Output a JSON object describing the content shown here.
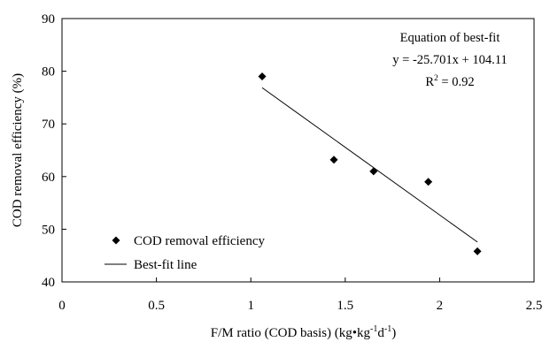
{
  "chart_data": {
    "type": "scatter",
    "xlabel": "F/M ratio (COD basis) (kg•kg",
    "xlabel_sup1": "-1",
    "xlabel_mid": "d",
    "xlabel_sup2": "-1",
    "xlabel_end": ")",
    "ylabel": "COD removal efficiency (%)",
    "xlim": [
      0,
      2.5
    ],
    "ylim": [
      40,
      90
    ],
    "x_ticks": [
      "0",
      "0.5",
      "1",
      "1.5",
      "2",
      "2.5"
    ],
    "y_ticks": [
      "40",
      "50",
      "60",
      "70",
      "80",
      "90"
    ],
    "series": [
      {
        "name": "COD removal efficiency",
        "marker": "diamond",
        "points": [
          {
            "x": 1.06,
            "y": 79.0
          },
          {
            "x": 1.44,
            "y": 63.2
          },
          {
            "x": 1.65,
            "y": 61.0
          },
          {
            "x": 1.94,
            "y": 59.0
          },
          {
            "x": 2.2,
            "y": 45.8
          }
        ]
      },
      {
        "name": "Best-fit line",
        "type": "line",
        "slope": -25.701,
        "intercept": 104.11,
        "x_range": [
          1.06,
          2.2
        ]
      }
    ],
    "annotation": {
      "line1": "Equation of best-fit",
      "line2": "y = -25.701x + 104.11",
      "line3_prefix": "R",
      "line3_sup": "2",
      "line3_suffix": " = 0.92"
    },
    "legend_position": "bottom-left",
    "grid": false,
    "colors": {
      "marker": "#000000",
      "line": "#000000",
      "frame": "#000000"
    }
  }
}
